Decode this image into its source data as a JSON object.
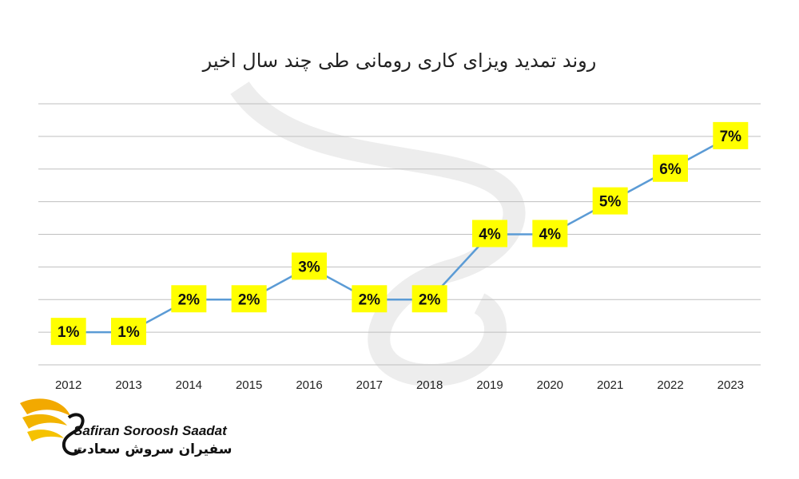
{
  "chart_data": {
    "type": "line",
    "title": "روند تمدید ویزای کاری رومانی طی چند سال اخیر",
    "categories": [
      "2012",
      "2013",
      "2014",
      "2015",
      "2016",
      "2017",
      "2018",
      "2019",
      "2020",
      "2021",
      "2022",
      "2023"
    ],
    "series": [
      {
        "values": [
          1,
          1,
          2,
          2,
          3,
          2,
          2,
          4,
          4,
          5,
          6,
          7
        ],
        "labels": [
          "1%",
          "1%",
          "2%",
          "2%",
          "3%",
          "2%",
          "2%",
          "4%",
          "4%",
          "5%",
          "6%",
          "7%"
        ]
      }
    ],
    "ylim": [
      0,
      8
    ],
    "grid": true,
    "legend": "none",
    "colors": {
      "line": "#5b9bd5",
      "label_bg": "#ffff00",
      "grid": "#bfbfbf"
    }
  },
  "brand": {
    "name_en": "Safiran Soroosh Saadat",
    "name_fa": "سفیران سروش سعادت"
  }
}
